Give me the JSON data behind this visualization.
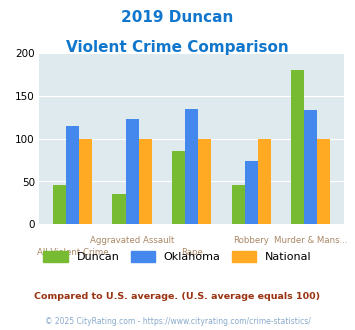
{
  "title_line1": "2019 Duncan",
  "title_line2": "Violent Crime Comparison",
  "categories": [
    "All Violent Crime",
    "Aggravated Assault",
    "Rape",
    "Robbery",
    "Murder & Mans..."
  ],
  "duncan": [
    46,
    35,
    85,
    46,
    180
  ],
  "oklahoma": [
    115,
    123,
    135,
    74,
    133
  ],
  "national": [
    100,
    100,
    100,
    100,
    100
  ],
  "duncan_color": "#77bb33",
  "oklahoma_color": "#4488ee",
  "national_color": "#ffaa22",
  "ylim": [
    0,
    200
  ],
  "yticks": [
    0,
    50,
    100,
    150,
    200
  ],
  "bg_color": "#deeaee",
  "title_color": "#1177cc",
  "xlabel_color": "#aa8866",
  "footnote1": "Compared to U.S. average. (U.S. average equals 100)",
  "footnote2": "© 2025 CityRating.com - https://www.cityrating.com/crime-statistics/",
  "footnote1_color": "#993311",
  "footnote2_color": "#88aacc",
  "legend_labels": [
    "Duncan",
    "Oklahoma",
    "National"
  ],
  "top_labels": [
    "",
    "Aggravated Assault",
    "",
    "Robbery",
    "Murder & Mans..."
  ],
  "bot_labels": [
    "All Violent Crime",
    "",
    "Rape",
    "",
    ""
  ]
}
